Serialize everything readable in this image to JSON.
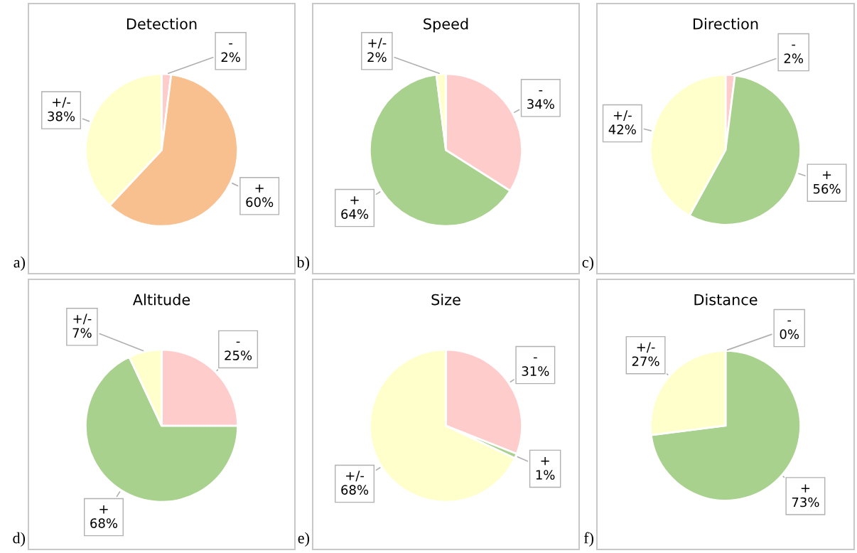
{
  "chart_data": [
    {
      "type": "pie",
      "title": "Detection",
      "categories": [
        "-",
        "+",
        "+/-"
      ],
      "values": [
        2,
        60,
        38
      ],
      "value_labels": [
        "2%",
        "60%",
        "38%"
      ],
      "colors": [
        "#ffcccc",
        "#f8bf8f",
        "#ffffcc"
      ],
      "annotations": [
        "a)"
      ]
    },
    {
      "type": "pie",
      "title": "Speed",
      "categories": [
        "-",
        "+",
        "+/-"
      ],
      "values": [
        34,
        64,
        2
      ],
      "value_labels": [
        "34%",
        "64%",
        "2%"
      ],
      "colors": [
        "#ffcccc",
        "#a9d18e",
        "#ffffcc"
      ],
      "annotations": [
        "b)"
      ]
    },
    {
      "type": "pie",
      "title": "Direction",
      "categories": [
        "-",
        "+",
        "+/-"
      ],
      "values": [
        2,
        56,
        42
      ],
      "value_labels": [
        "2%",
        "56%",
        "42%"
      ],
      "colors": [
        "#ffcccc",
        "#a9d18e",
        "#ffffcc"
      ],
      "annotations": [
        "c)"
      ]
    },
    {
      "type": "pie",
      "title": "Altitude",
      "categories": [
        "-",
        "+",
        "+/-"
      ],
      "values": [
        25,
        68,
        7
      ],
      "value_labels": [
        "25%",
        "68%",
        "7%"
      ],
      "colors": [
        "#ffcccc",
        "#a9d18e",
        "#ffffcc"
      ],
      "annotations": [
        "d)"
      ]
    },
    {
      "type": "pie",
      "title": "Size",
      "categories": [
        "-",
        "+",
        "+/-"
      ],
      "values": [
        31,
        1,
        68
      ],
      "value_labels": [
        "31%",
        "1%",
        "68%"
      ],
      "colors": [
        "#ffcccc",
        "#a9d18e",
        "#ffffcc"
      ],
      "annotations": [
        "e)"
      ]
    },
    {
      "type": "pie",
      "title": "Distance",
      "categories": [
        "-",
        "+",
        "+/-"
      ],
      "values": [
        0,
        73,
        27
      ],
      "value_labels": [
        "0%",
        "73%",
        "27%"
      ],
      "colors": [
        "#ffcccc",
        "#a9d18e",
        "#ffffcc"
      ],
      "annotations": [
        "f)"
      ]
    }
  ]
}
